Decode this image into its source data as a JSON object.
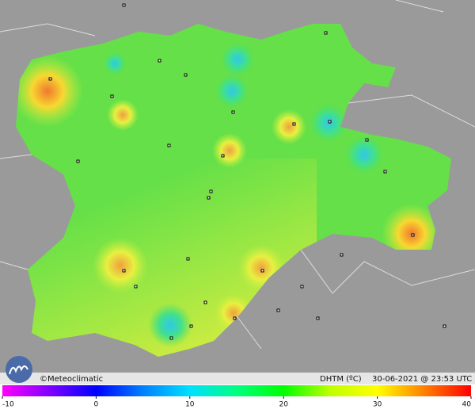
{
  "credit": "©Meteoclimatic",
  "variable": "DHTM (ºC)",
  "timestamp": "30-06-2021 @ 23:53 UTC",
  "scale": {
    "range": [
      -10,
      40
    ],
    "ticks": [
      -10,
      0,
      10,
      20,
      30,
      40
    ]
  }
}
